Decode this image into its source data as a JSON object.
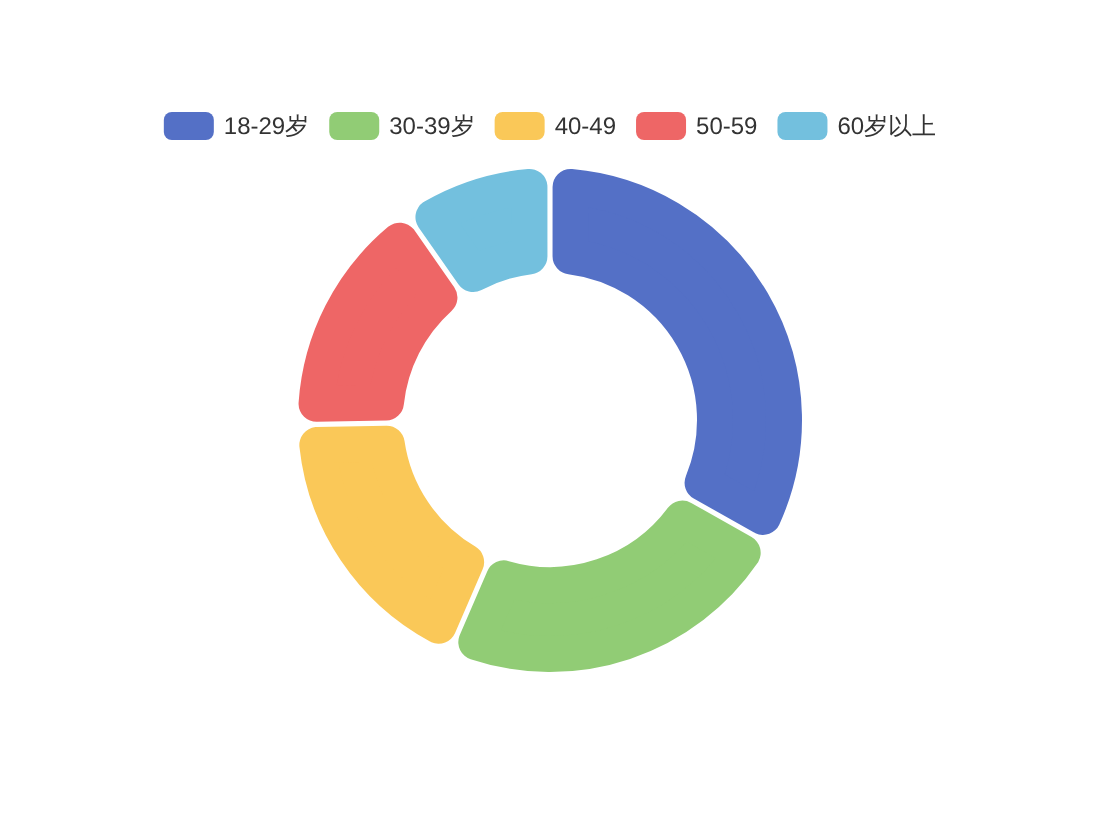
{
  "chart_data": {
    "type": "donut",
    "categories": [
      "18-29岁",
      "30-39岁",
      "40-49",
      "50-59",
      "60岁以上"
    ],
    "values": [
      33.2,
      23.3,
      18.2,
      15.6,
      9.7
    ],
    "colors": [
      "#5470c6",
      "#91cc75",
      "#fac858",
      "#ee6666",
      "#73c0de"
    ],
    "legend": "top"
  }
}
